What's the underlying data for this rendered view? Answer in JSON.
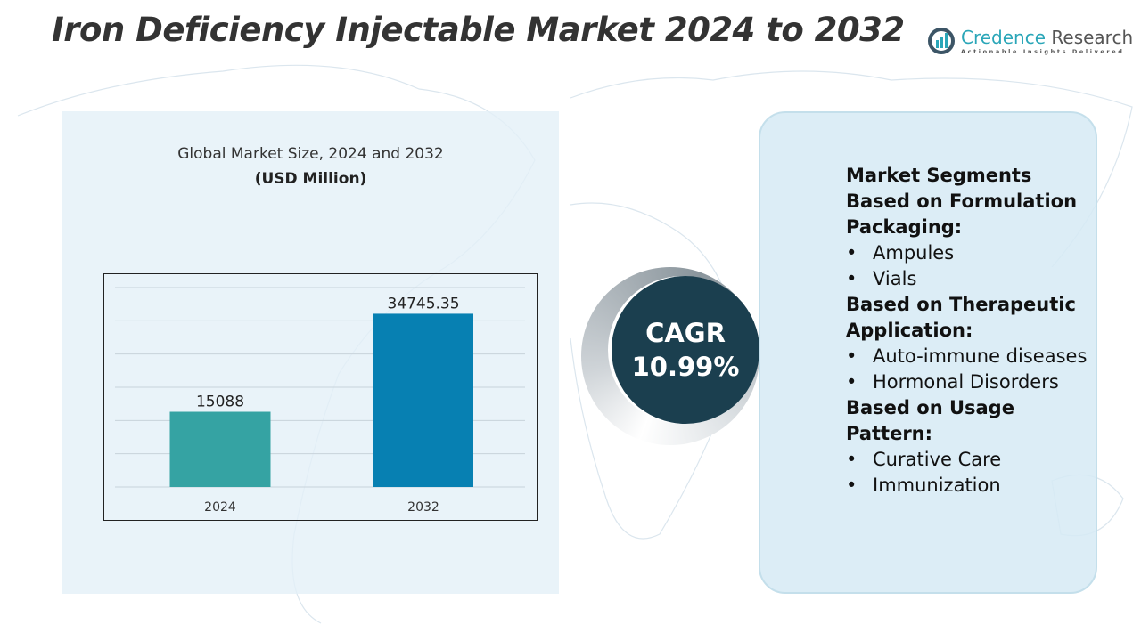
{
  "title": "Iron Deficiency Injectable Market 2024 to 2032",
  "logo": {
    "name_part1": "Credence",
    "name_part2": " Research",
    "tagline": "Actionable Insights Delivered"
  },
  "chart_panel": {
    "subtitle": "Global Market Size, 2024 and 2032",
    "unit": "(USD Million)"
  },
  "chart_data": {
    "type": "bar",
    "categories": [
      "2024",
      "2032"
    ],
    "values": [
      15088,
      34745.35
    ],
    "value_labels": [
      "15088",
      "34745.35"
    ],
    "colors": [
      "#35a3a3",
      "#0780b2"
    ],
    "ylim": [
      0,
      40000
    ],
    "grid": true,
    "title": "Global Market Size, 2024 and 2032",
    "ylabel": "(USD Million)"
  },
  "cagr": {
    "label": "CAGR",
    "value": "10.99%"
  },
  "segments": {
    "heading": "Market Segments",
    "groups": [
      {
        "title": "Based on Formulation Packaging:",
        "items": [
          "Ampules",
          "Vials"
        ]
      },
      {
        "title": "Based on Therapeutic Application:",
        "items": [
          "Auto-immune diseases",
          "Hormonal Disorders"
        ]
      },
      {
        "title": "Based on Usage Pattern:",
        "items": [
          "Curative Care",
          "Immunization"
        ]
      }
    ]
  }
}
